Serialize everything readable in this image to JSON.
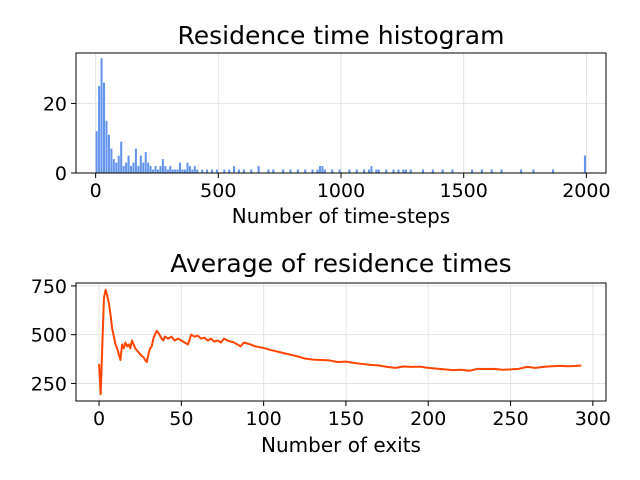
{
  "chart_data": [
    {
      "type": "bar",
      "title": "Residence time histogram",
      "xlabel": "Number of time-steps",
      "ylabel": "",
      "xlim": [
        -80,
        2080
      ],
      "ylim": [
        0,
        34.5
      ],
      "xticks": [
        0,
        500,
        1000,
        1500,
        2000
      ],
      "yticks": [
        0,
        20
      ],
      "grid": true,
      "bar_color": "#6495ed",
      "bin_width": 10,
      "bins": [
        {
          "x": 0,
          "value": 12
        },
        {
          "x": 10,
          "value": 25
        },
        {
          "x": 20,
          "value": 33
        },
        {
          "x": 30,
          "value": 26
        },
        {
          "x": 40,
          "value": 15
        },
        {
          "x": 50,
          "value": 11
        },
        {
          "x": 60,
          "value": 7
        },
        {
          "x": 70,
          "value": 4
        },
        {
          "x": 80,
          "value": 3
        },
        {
          "x": 90,
          "value": 5
        },
        {
          "x": 100,
          "value": 9
        },
        {
          "x": 110,
          "value": 2
        },
        {
          "x": 120,
          "value": 3
        },
        {
          "x": 130,
          "value": 5
        },
        {
          "x": 140,
          "value": 2
        },
        {
          "x": 150,
          "value": 3
        },
        {
          "x": 160,
          "value": 7
        },
        {
          "x": 170,
          "value": 2
        },
        {
          "x": 180,
          "value": 5
        },
        {
          "x": 190,
          "value": 3
        },
        {
          "x": 200,
          "value": 6
        },
        {
          "x": 210,
          "value": 3
        },
        {
          "x": 220,
          "value": 2
        },
        {
          "x": 230,
          "value": 1
        },
        {
          "x": 240,
          "value": 2
        },
        {
          "x": 250,
          "value": 1
        },
        {
          "x": 260,
          "value": 2
        },
        {
          "x": 270,
          "value": 4
        },
        {
          "x": 280,
          "value": 2
        },
        {
          "x": 290,
          "value": 1
        },
        {
          "x": 300,
          "value": 2
        },
        {
          "x": 310,
          "value": 1
        },
        {
          "x": 320,
          "value": 1
        },
        {
          "x": 330,
          "value": 1
        },
        {
          "x": 340,
          "value": 3
        },
        {
          "x": 350,
          "value": 1
        },
        {
          "x": 360,
          "value": 1
        },
        {
          "x": 370,
          "value": 3
        },
        {
          "x": 380,
          "value": 2
        },
        {
          "x": 390,
          "value": 1
        },
        {
          "x": 400,
          "value": 2
        },
        {
          "x": 410,
          "value": 1
        },
        {
          "x": 430,
          "value": 1
        },
        {
          "x": 450,
          "value": 1
        },
        {
          "x": 470,
          "value": 1
        },
        {
          "x": 490,
          "value": 1
        },
        {
          "x": 520,
          "value": 1
        },
        {
          "x": 540,
          "value": 1
        },
        {
          "x": 560,
          "value": 2
        },
        {
          "x": 580,
          "value": 1
        },
        {
          "x": 600,
          "value": 1
        },
        {
          "x": 630,
          "value": 1
        },
        {
          "x": 660,
          "value": 2
        },
        {
          "x": 700,
          "value": 1
        },
        {
          "x": 720,
          "value": 1
        },
        {
          "x": 760,
          "value": 1
        },
        {
          "x": 790,
          "value": 1
        },
        {
          "x": 820,
          "value": 1
        },
        {
          "x": 850,
          "value": 1
        },
        {
          "x": 880,
          "value": 1
        },
        {
          "x": 900,
          "value": 1
        },
        {
          "x": 910,
          "value": 2
        },
        {
          "x": 920,
          "value": 2
        },
        {
          "x": 930,
          "value": 1
        },
        {
          "x": 960,
          "value": 1
        },
        {
          "x": 990,
          "value": 1
        },
        {
          "x": 1030,
          "value": 1
        },
        {
          "x": 1060,
          "value": 1
        },
        {
          "x": 1090,
          "value": 1
        },
        {
          "x": 1110,
          "value": 1
        },
        {
          "x": 1120,
          "value": 2
        },
        {
          "x": 1140,
          "value": 1
        },
        {
          "x": 1150,
          "value": 1
        },
        {
          "x": 1180,
          "value": 1
        },
        {
          "x": 1210,
          "value": 1
        },
        {
          "x": 1230,
          "value": 1
        },
        {
          "x": 1250,
          "value": 1
        },
        {
          "x": 1260,
          "value": 1
        },
        {
          "x": 1280,
          "value": 1
        },
        {
          "x": 1330,
          "value": 1
        },
        {
          "x": 1370,
          "value": 1
        },
        {
          "x": 1410,
          "value": 1
        },
        {
          "x": 1450,
          "value": 1
        },
        {
          "x": 1530,
          "value": 1
        },
        {
          "x": 1570,
          "value": 1
        },
        {
          "x": 1610,
          "value": 1
        },
        {
          "x": 1650,
          "value": 1
        },
        {
          "x": 1730,
          "value": 1
        },
        {
          "x": 1780,
          "value": 1
        },
        {
          "x": 1860,
          "value": 1
        },
        {
          "x": 1990,
          "value": 5
        }
      ]
    },
    {
      "type": "line",
      "title": "Average of residence times",
      "xlabel": "Number of exits",
      "ylabel": "",
      "xlim": [
        -14,
        308
      ],
      "ylim": [
        160,
        765
      ],
      "xticks": [
        0,
        50,
        100,
        150,
        200,
        250,
        300
      ],
      "yticks": [
        250,
        500,
        750
      ],
      "grid": true,
      "line_color": "#ff4500",
      "points": [
        [
          0,
          350
        ],
        [
          1,
          195
        ],
        [
          2,
          450
        ],
        [
          3,
          690
        ],
        [
          4,
          730
        ],
        [
          5,
          700
        ],
        [
          6,
          660
        ],
        [
          7,
          600
        ],
        [
          8,
          530
        ],
        [
          9,
          490
        ],
        [
          10,
          450
        ],
        [
          11,
          430
        ],
        [
          12,
          400
        ],
        [
          13,
          370
        ],
        [
          14,
          450
        ],
        [
          15,
          430
        ],
        [
          16,
          460
        ],
        [
          17,
          440
        ],
        [
          18,
          450
        ],
        [
          19,
          430
        ],
        [
          20,
          470
        ],
        [
          21,
          450
        ],
        [
          22,
          430
        ],
        [
          23,
          420
        ],
        [
          24,
          410
        ],
        [
          25,
          400
        ],
        [
          26,
          390
        ],
        [
          27,
          385
        ],
        [
          28,
          370
        ],
        [
          29,
          360
        ],
        [
          30,
          400
        ],
        [
          31,
          430
        ],
        [
          32,
          440
        ],
        [
          33,
          480
        ],
        [
          34,
          500
        ],
        [
          35,
          520
        ],
        [
          36,
          510
        ],
        [
          37,
          495
        ],
        [
          38,
          480
        ],
        [
          39,
          470
        ],
        [
          40,
          490
        ],
        [
          42,
          480
        ],
        [
          44,
          490
        ],
        [
          46,
          470
        ],
        [
          48,
          480
        ],
        [
          50,
          470
        ],
        [
          52,
          460
        ],
        [
          54,
          450
        ],
        [
          56,
          500
        ],
        [
          58,
          490
        ],
        [
          60,
          495
        ],
        [
          62,
          480
        ],
        [
          64,
          485
        ],
        [
          66,
          470
        ],
        [
          68,
          480
        ],
        [
          70,
          465
        ],
        [
          72,
          470
        ],
        [
          74,
          460
        ],
        [
          76,
          480
        ],
        [
          78,
          470
        ],
        [
          80,
          465
        ],
        [
          82,
          460
        ],
        [
          84,
          450
        ],
        [
          86,
          440
        ],
        [
          88,
          460
        ],
        [
          90,
          455
        ],
        [
          92,
          450
        ],
        [
          95,
          440
        ],
        [
          100,
          432
        ],
        [
          105,
          420
        ],
        [
          110,
          410
        ],
        [
          115,
          400
        ],
        [
          120,
          390
        ],
        [
          125,
          378
        ],
        [
          130,
          372
        ],
        [
          135,
          370
        ],
        [
          140,
          368
        ],
        [
          145,
          360
        ],
        [
          150,
          362
        ],
        [
          155,
          355
        ],
        [
          160,
          350
        ],
        [
          165,
          345
        ],
        [
          170,
          342
        ],
        [
          175,
          335
        ],
        [
          180,
          330
        ],
        [
          185,
          337
        ],
        [
          190,
          335
        ],
        [
          195,
          336
        ],
        [
          200,
          330
        ],
        [
          205,
          326
        ],
        [
          210,
          322
        ],
        [
          215,
          318
        ],
        [
          220,
          320
        ],
        [
          225,
          315
        ],
        [
          230,
          325
        ],
        [
          235,
          324
        ],
        [
          240,
          325
        ],
        [
          245,
          320
        ],
        [
          250,
          322
        ],
        [
          255,
          325
        ],
        [
          260,
          335
        ],
        [
          265,
          330
        ],
        [
          270,
          335
        ],
        [
          275,
          338
        ],
        [
          280,
          340
        ],
        [
          285,
          338
        ],
        [
          290,
          340
        ],
        [
          293,
          342
        ]
      ]
    }
  ]
}
